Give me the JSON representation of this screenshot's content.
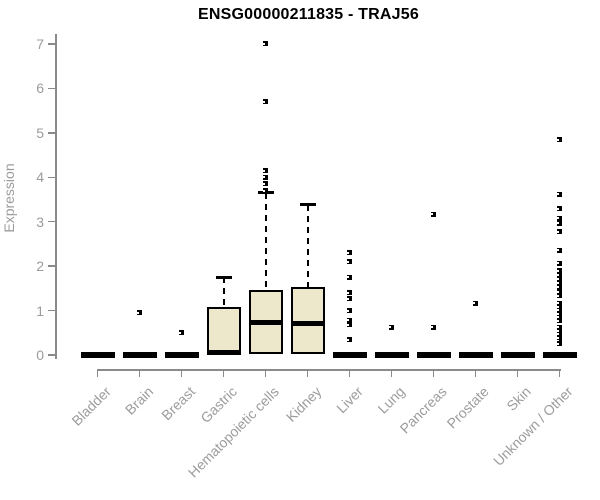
{
  "title": "ENSG00000211835 - TRAJ56",
  "chart_data": {
    "type": "boxplot",
    "title": "ENSG00000211835 - TRAJ56",
    "xlabel": "",
    "ylabel": "Expression",
    "ylim": [
      0,
      7
    ],
    "yticks": [
      0,
      1,
      2,
      3,
      4,
      5,
      6,
      7
    ],
    "grid": false,
    "categories": [
      "Bladder",
      "Brain",
      "Breast",
      "Gastric",
      "Hematopoietic cells",
      "Kidney",
      "Liver",
      "Lung",
      "Pancreas",
      "Prostate",
      "Skin",
      "Unknown / Other"
    ],
    "boxes": [
      {
        "category": "Bladder",
        "whisker_low": 0,
        "q1": 0,
        "median": 0,
        "q3": 0,
        "whisker_high": 0,
        "outliers": []
      },
      {
        "category": "Brain",
        "whisker_low": 0,
        "q1": 0,
        "median": 0,
        "q3": 0,
        "whisker_high": 0,
        "outliers": [
          0.95
        ]
      },
      {
        "category": "Breast",
        "whisker_low": 0,
        "q1": 0,
        "median": 0,
        "q3": 0,
        "whisker_high": 0,
        "outliers": [
          0.5
        ]
      },
      {
        "category": "Gastric",
        "whisker_low": 0,
        "q1": 0,
        "median": 0.05,
        "q3": 1.08,
        "whisker_high": 1.75,
        "outliers": []
      },
      {
        "category": "Hematopoietic cells",
        "whisker_low": 0,
        "q1": 0.02,
        "median": 0.74,
        "q3": 1.46,
        "whisker_high": 3.65,
        "outliers": [
          7.0,
          5.7,
          4.15,
          4.0,
          3.85,
          3.7
        ]
      },
      {
        "category": "Kidney",
        "whisker_low": 0,
        "q1": 0.02,
        "median": 0.7,
        "q3": 1.53,
        "whisker_high": 3.38,
        "outliers": []
      },
      {
        "category": "Liver",
        "whisker_low": 0,
        "q1": 0,
        "median": 0,
        "q3": 0,
        "whisker_high": 0,
        "outliers": [
          2.3,
          2.1,
          1.75,
          1.4,
          1.27,
          1.0,
          0.78,
          0.68,
          0.34
        ]
      },
      {
        "category": "Lung",
        "whisker_low": 0,
        "q1": 0,
        "median": 0,
        "q3": 0,
        "whisker_high": 0,
        "outliers": [
          0.63
        ]
      },
      {
        "category": "Pancreas",
        "whisker_low": 0,
        "q1": 0,
        "median": 0,
        "q3": 0,
        "whisker_high": 0,
        "outliers": [
          3.17,
          0.63
        ]
      },
      {
        "category": "Prostate",
        "whisker_low": 0,
        "q1": 0,
        "median": 0,
        "q3": 0,
        "whisker_high": 0,
        "outliers": [
          1.17
        ]
      },
      {
        "category": "Skin",
        "whisker_low": 0,
        "q1": 0,
        "median": 0,
        "q3": 0,
        "whisker_high": 0,
        "outliers": []
      },
      {
        "category": "Unknown / Other",
        "whisker_low": 0,
        "q1": 0,
        "median": 0,
        "q3": 0,
        "whisker_high": 0,
        "outliers": [
          4.85,
          3.62,
          3.29,
          3.08,
          2.97,
          2.77,
          2.36,
          2.07,
          1.9,
          1.81,
          1.72,
          1.63,
          1.54,
          1.42,
          1.33,
          1.17,
          1.09,
          1.01,
          0.93,
          0.85,
          0.77,
          0.63,
          0.55,
          0.47,
          0.39,
          0.31,
          0.25
        ]
      }
    ],
    "colors": {
      "box_fill": "#EDE8CC",
      "box_border": "#000000",
      "median": "#000000",
      "whisker": "#000000",
      "outlier": "#000000",
      "axis": "#8A8A8A",
      "tick_label": "#9C9C9C",
      "title": "#000000",
      "background": "#FFFFFF"
    },
    "legend": null
  }
}
